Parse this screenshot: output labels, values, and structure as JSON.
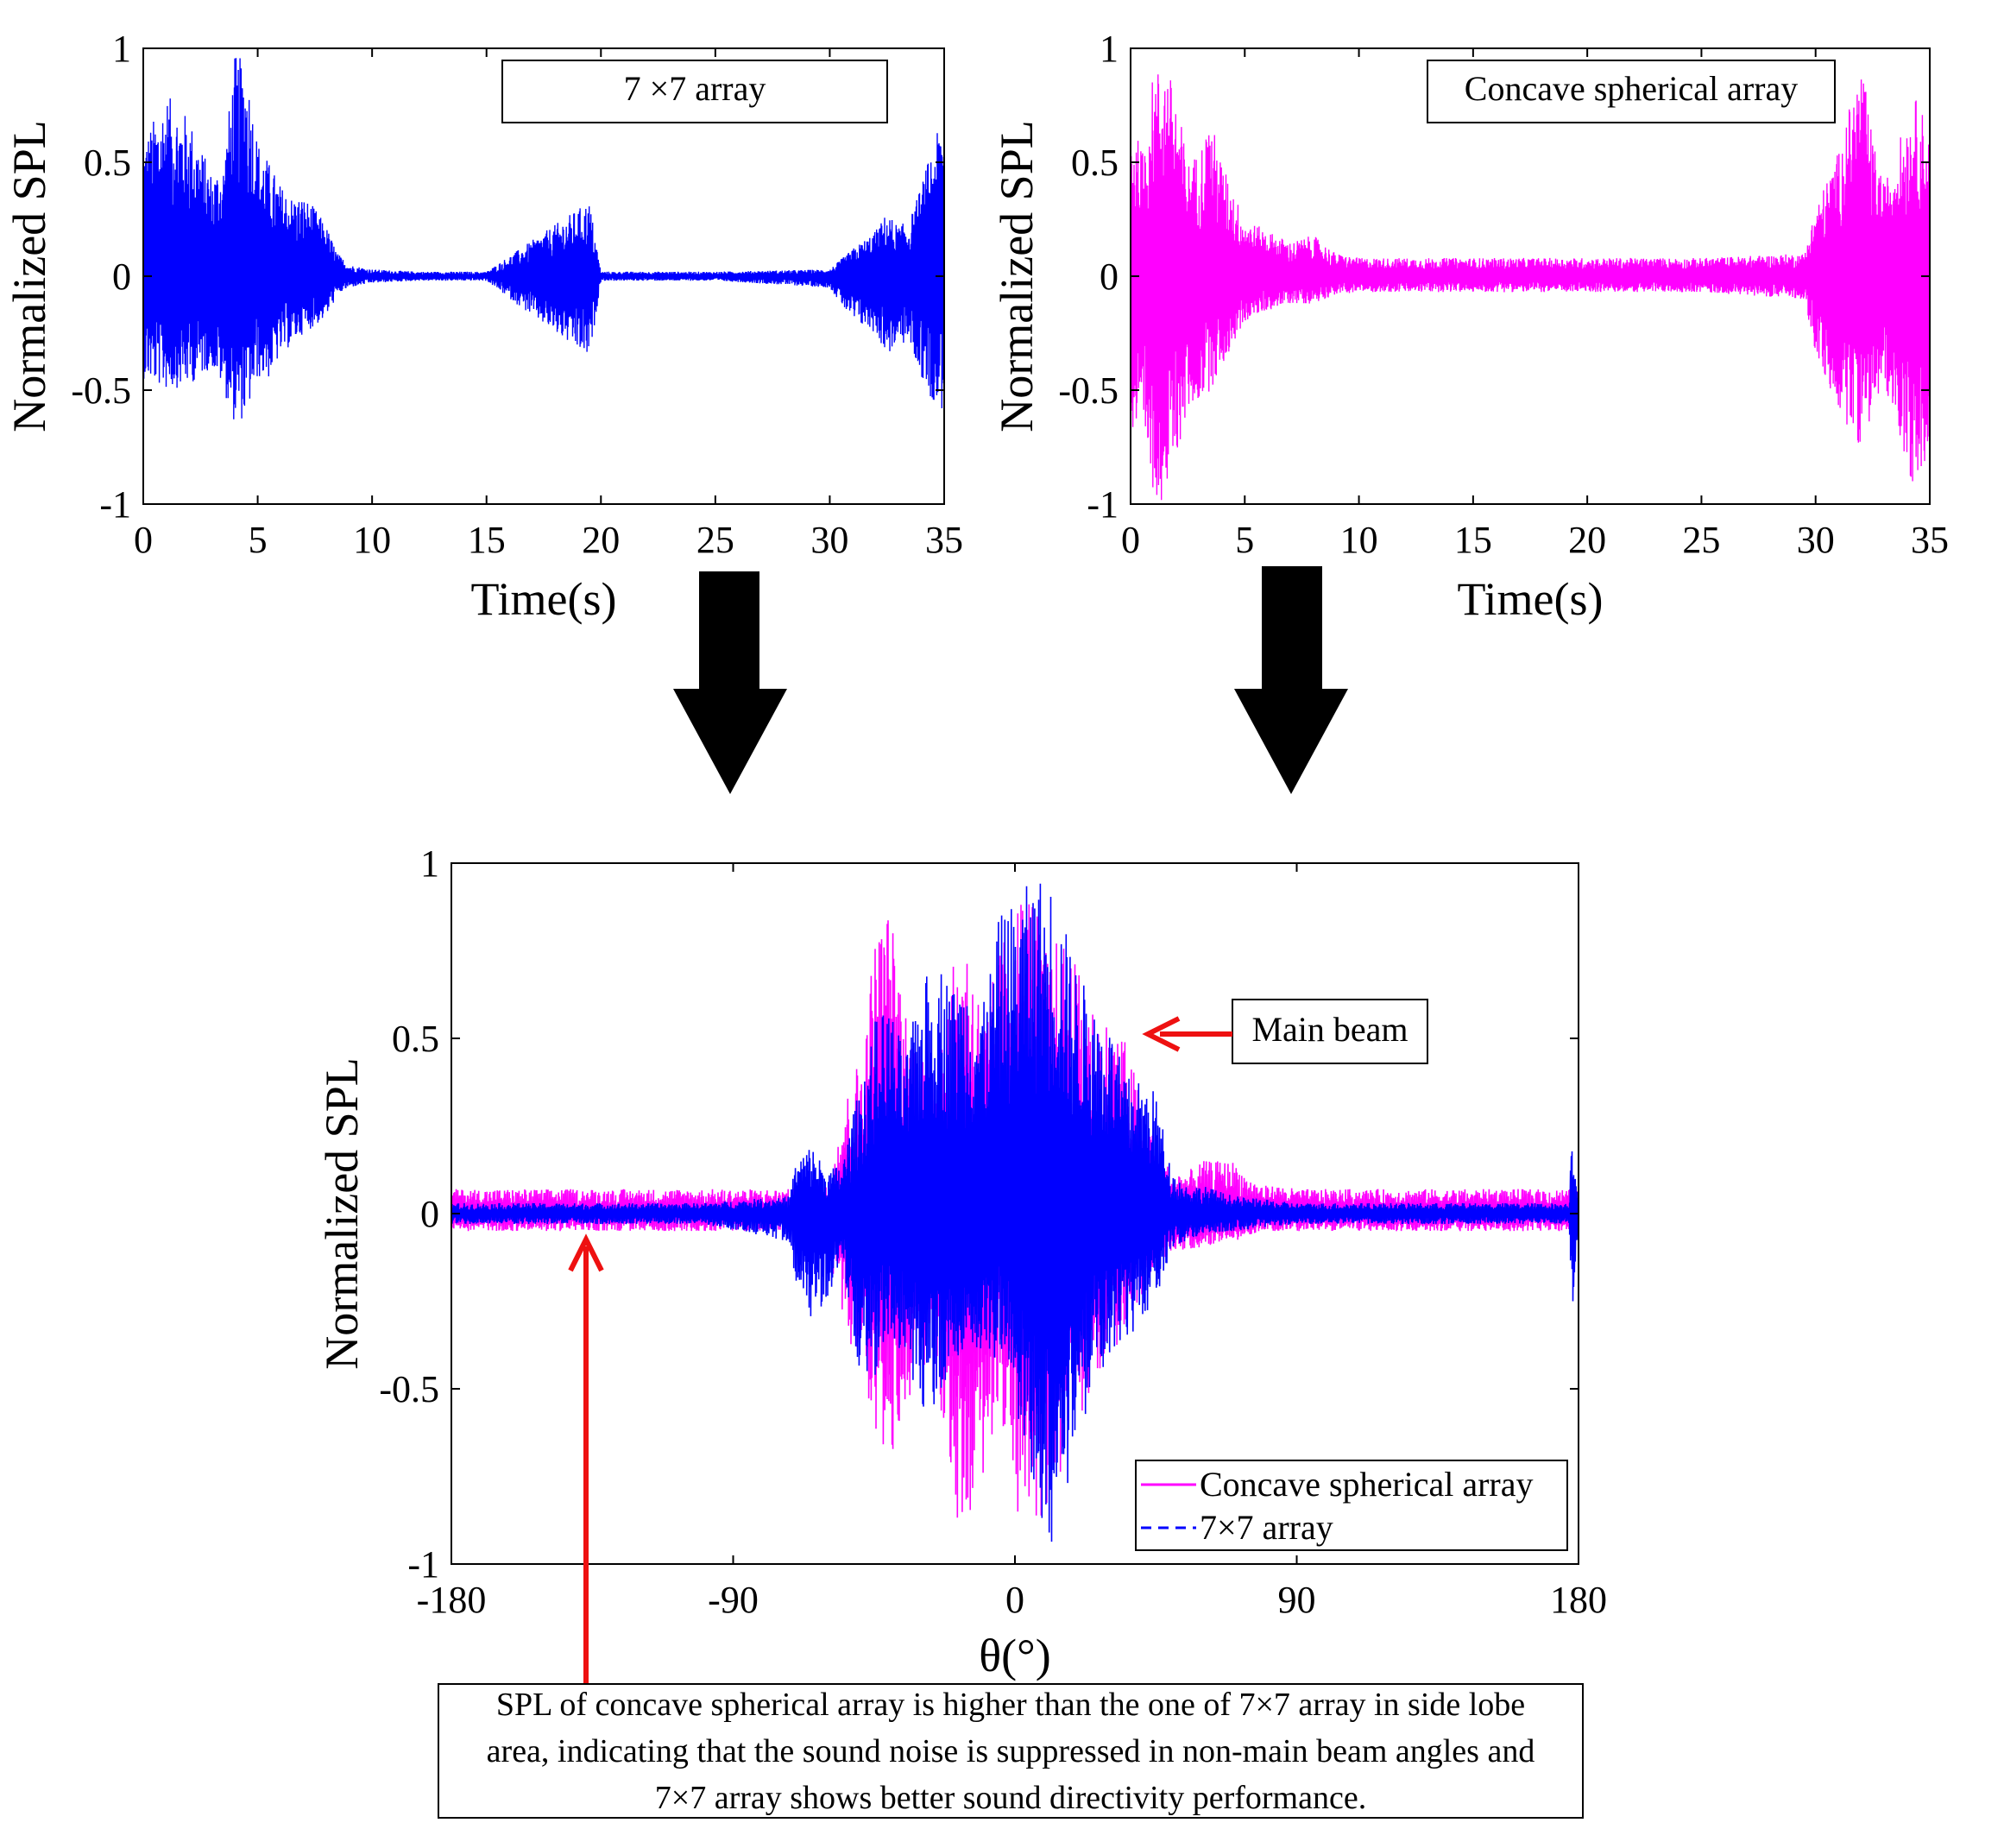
{
  "colors": {
    "blue": "#0000ff",
    "magenta": "#ff00ff",
    "red": "#ee1111",
    "black": "#000000"
  },
  "chart_data": [
    {
      "type": "line",
      "label_box": "7 ×7 array",
      "xlabel": "Time(s)",
      "ylabel": "Normalized SPL",
      "xlim": [
        0,
        35
      ],
      "ylim": [
        -1,
        1
      ],
      "xticks": [
        "0",
        "5",
        "10",
        "15",
        "20",
        "25",
        "30",
        "35"
      ],
      "yticks": [
        "1",
        "0.5",
        "0",
        "-0.5",
        "-1"
      ],
      "series": [
        {
          "color": "#0000ff",
          "envelope_x": [
            0,
            1,
            2,
            3,
            3.5,
            4,
            4.5,
            5,
            5.5,
            6,
            6.5,
            7,
            7.5,
            8,
            8.5,
            9,
            10,
            12,
            15,
            19.5,
            20,
            25,
            30,
            31,
            32,
            32.5,
            33,
            33.5,
            34,
            34.5,
            35
          ],
          "envelope_upper": [
            0.6,
            0.8,
            0.7,
            0.45,
            0.5,
            0.97,
            0.95,
            0.6,
            0.5,
            0.4,
            0.35,
            0.35,
            0.3,
            0.22,
            0.1,
            0.05,
            0.03,
            0.02,
            0.02,
            0.33,
            0.02,
            0.02,
            0.03,
            0.12,
            0.2,
            0.28,
            0.22,
            0.25,
            0.4,
            0.58,
            0.7
          ],
          "envelope_lower": [
            -0.45,
            -0.5,
            -0.48,
            -0.4,
            -0.5,
            -0.65,
            -0.62,
            -0.45,
            -0.45,
            -0.35,
            -0.3,
            -0.25,
            -0.22,
            -0.18,
            -0.08,
            -0.05,
            -0.03,
            -0.02,
            -0.02,
            -0.37,
            -0.02,
            -0.02,
            -0.05,
            -0.2,
            -0.25,
            -0.35,
            -0.3,
            -0.3,
            -0.45,
            -0.55,
            -0.6
          ]
        }
      ]
    },
    {
      "type": "line",
      "label_box": "Concave spherical array",
      "xlabel": "Time(s)",
      "ylabel": "Normalized SPL",
      "xlim": [
        0,
        35
      ],
      "ylim": [
        -1,
        1
      ],
      "xticks": [
        "0",
        "5",
        "10",
        "15",
        "20",
        "25",
        "30",
        "35"
      ],
      "yticks": [
        "1",
        "0.5",
        "0",
        "-0.5",
        "-1"
      ],
      "series": [
        {
          "color": "#ff00ff",
          "envelope_x": [
            0,
            0.5,
            1,
            1.5,
            2,
            2.5,
            3,
            3.5,
            4,
            5,
            6,
            7,
            8,
            9,
            10,
            15,
            20,
            25,
            29.5,
            30,
            31,
            32,
            32.5,
            33,
            33.5,
            34,
            34.5,
            35
          ],
          "envelope_upper": [
            0.7,
            0.55,
            0.9,
            0.95,
            0.8,
            0.5,
            0.55,
            0.7,
            0.5,
            0.25,
            0.2,
            0.15,
            0.18,
            0.1,
            0.08,
            0.08,
            0.08,
            0.08,
            0.1,
            0.3,
            0.55,
            0.95,
            0.6,
            0.4,
            0.55,
            0.7,
            0.8,
            0.6
          ],
          "envelope_lower": [
            -0.7,
            -0.75,
            -0.95,
            -1,
            -0.8,
            -0.6,
            -0.55,
            -0.5,
            -0.4,
            -0.2,
            -0.15,
            -0.12,
            -0.12,
            -0.08,
            -0.07,
            -0.07,
            -0.07,
            -0.07,
            -0.1,
            -0.35,
            -0.6,
            -0.75,
            -0.6,
            -0.5,
            -0.6,
            -0.85,
            -1,
            -0.7
          ]
        }
      ]
    },
    {
      "type": "line",
      "xlabel": "θ(°)",
      "ylabel": "Normalized SPL",
      "xlim": [
        -180,
        180
      ],
      "ylim": [
        -1,
        1
      ],
      "xticks": [
        "-180",
        "-90",
        "0",
        "90",
        "180"
      ],
      "yticks": [
        "1",
        "0.5",
        "0",
        "-0.5",
        "-1"
      ],
      "legend_position": "bottom-right",
      "annotation": "Main beam",
      "series": [
        {
          "name": "Concave spherical array",
          "color": "#ff00ff",
          "style": "solid",
          "envelope_x": [
            -180,
            -150,
            -100,
            -72,
            -60,
            -55,
            -48,
            -45,
            -40,
            -35,
            -30,
            -25,
            -20,
            -15,
            -10,
            -5,
            0,
            5,
            10,
            15,
            20,
            25,
            30,
            35,
            40,
            45,
            50,
            55,
            60,
            70,
            75,
            80,
            85,
            90,
            100,
            150,
            180
          ],
          "envelope_upper": [
            0.07,
            0.07,
            0.07,
            0.07,
            0.08,
            0.3,
            0.5,
            0.8,
            0.88,
            0.6,
            0.45,
            0.5,
            0.7,
            0.8,
            0.55,
            0.75,
            0.9,
            0.95,
            0.75,
            0.8,
            0.7,
            0.6,
            0.55,
            0.5,
            0.35,
            0.2,
            0.12,
            0.12,
            0.15,
            0.15,
            0.1,
            0.08,
            0.08,
            0.07,
            0.07,
            0.07,
            0.07
          ],
          "envelope_lower": [
            -0.05,
            -0.05,
            -0.05,
            -0.05,
            -0.1,
            -0.3,
            -0.5,
            -0.7,
            -0.72,
            -0.55,
            -0.45,
            -0.5,
            -0.85,
            -0.98,
            -0.75,
            -0.55,
            -0.85,
            -0.9,
            -0.85,
            -0.75,
            -0.6,
            -0.5,
            -0.4,
            -0.35,
            -0.25,
            -0.15,
            -0.12,
            -0.1,
            -0.1,
            -0.08,
            -0.06,
            -0.05,
            -0.05,
            -0.05,
            -0.05,
            -0.05,
            -0.05
          ]
        },
        {
          "name": "7×7 array",
          "color": "#0000ff",
          "style": "dashed",
          "envelope_x": [
            -180,
            -150,
            -100,
            -72,
            -70,
            -65,
            -60,
            -55,
            -50,
            -45,
            -40,
            -35,
            -30,
            -25,
            -20,
            -15,
            -10,
            -5,
            0,
            5,
            10,
            12,
            15,
            20,
            25,
            30,
            35,
            40,
            45,
            50,
            55,
            60,
            70,
            80,
            90,
            100,
            150,
            177,
            178,
            180
          ],
          "envelope_upper": [
            0.03,
            0.03,
            0.03,
            0.05,
            0.15,
            0.2,
            0.12,
            0.15,
            0.35,
            0.55,
            0.6,
            0.45,
            0.65,
            0.75,
            0.65,
            0.7,
            0.6,
            0.85,
            0.9,
            0.95,
            0.98,
            0.95,
            0.85,
            0.7,
            0.6,
            0.55,
            0.4,
            0.38,
            0.35,
            0.12,
            0.08,
            0.08,
            0.05,
            0.04,
            0.03,
            0.03,
            0.03,
            0.03,
            0.3,
            0.03
          ],
          "envelope_lower": [
            -0.03,
            -0.03,
            -0.03,
            -0.08,
            -0.2,
            -0.3,
            -0.25,
            -0.15,
            -0.45,
            -0.5,
            -0.35,
            -0.45,
            -0.6,
            -0.55,
            -0.5,
            -0.35,
            -0.45,
            -0.4,
            -0.55,
            -0.75,
            -0.95,
            -0.95,
            -0.85,
            -0.65,
            -0.5,
            -0.45,
            -0.4,
            -0.3,
            -0.25,
            -0.1,
            -0.08,
            -0.06,
            -0.05,
            -0.04,
            -0.03,
            -0.03,
            -0.03,
            -0.03,
            -0.35,
            -0.03
          ]
        }
      ]
    }
  ],
  "note": "SPL of concave spherical array is higher than the one of 7×7 array in side lobe area, indicating that the sound noise is suppressed in non-main beam angles and 7×7 array shows better sound directivity performance."
}
